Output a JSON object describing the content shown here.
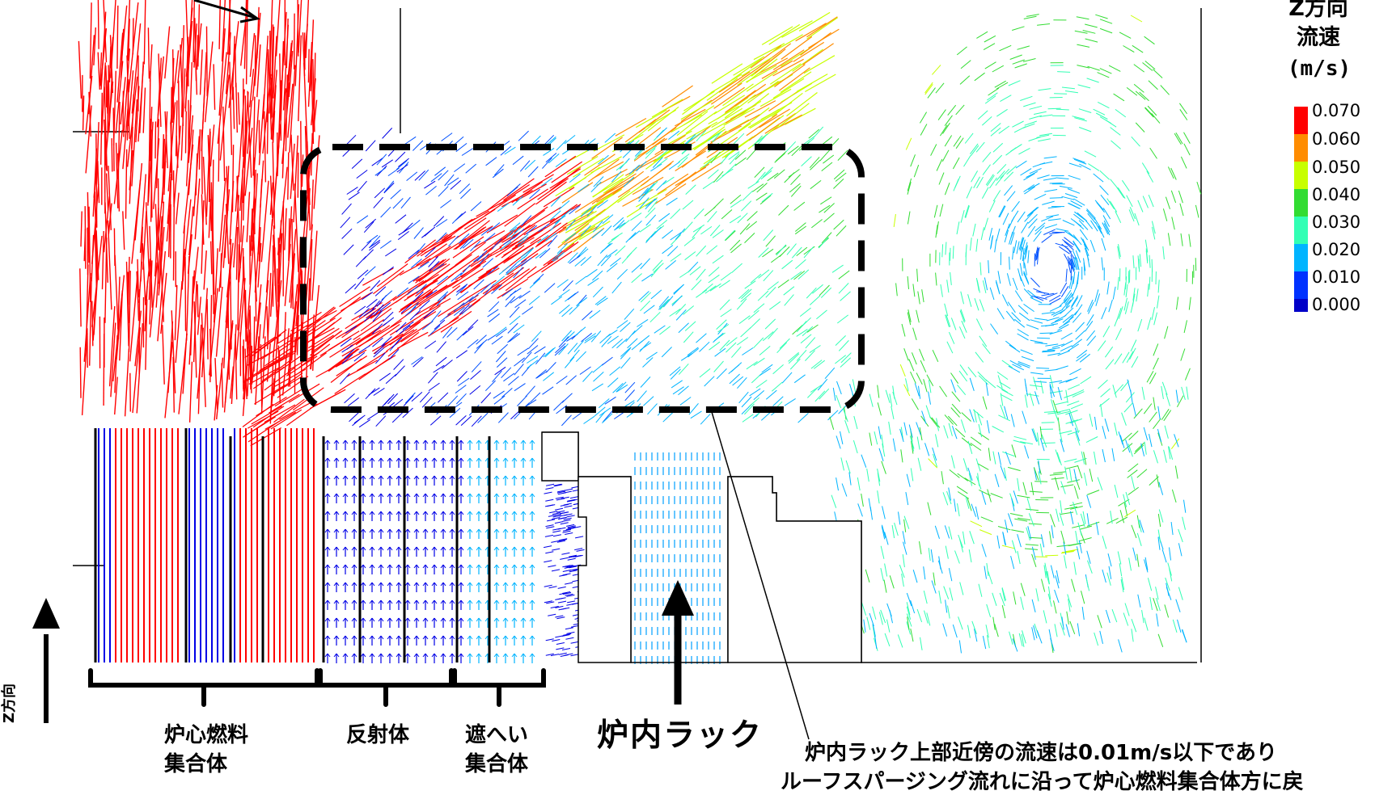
{
  "legend": {
    "title_line1": "Z方向",
    "title_line2": "流速",
    "unit": "(m/s)",
    "ticks": [
      "0.070",
      "0.060",
      "0.050",
      "0.040",
      "0.030",
      "0.020",
      "0.010",
      "0.000"
    ],
    "colors": [
      "#ff0000",
      "#ff8c00",
      "#c8ff00",
      "#32dc32",
      "#32ffb4",
      "#00b4ff",
      "#0032ff",
      "#0000c8"
    ]
  },
  "axis": {
    "direction_label": "Z方向"
  },
  "regions": {
    "core_fuel": {
      "line1": "炉心燃料",
      "line2": "集合体"
    },
    "reflector": {
      "line1": "反射体"
    },
    "shield": {
      "line1": "遮へい",
      "line2": "集合体"
    },
    "rack": {
      "line1": "炉内ラック"
    }
  },
  "note": {
    "line1": "炉内ラック上部近傍の流速は0.01m/s以下であり",
    "line2": "ルーフスパージング流れに沿って炉心燃料集合体方に戻"
  },
  "colors": {
    "high": "#ff0000",
    "mid": "#32dc32",
    "low": "#0000e6",
    "outline": "#000000"
  }
}
